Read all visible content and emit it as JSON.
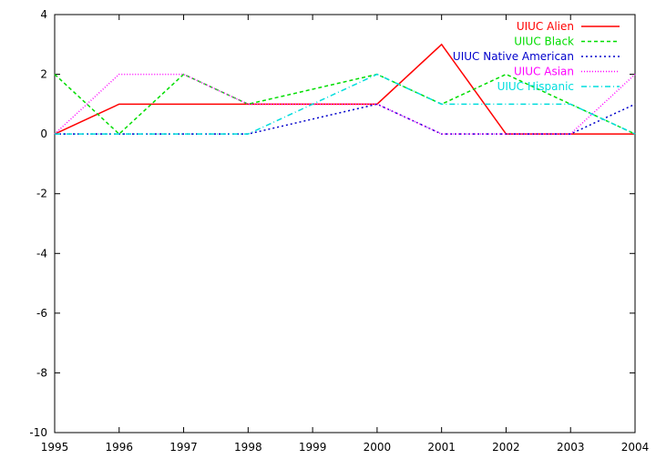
{
  "chart_data": {
    "type": "line",
    "x": [
      1995,
      1996,
      1997,
      1998,
      1999,
      2000,
      2001,
      2002,
      2003,
      2004
    ],
    "xlim": [
      1995,
      2004
    ],
    "ylim": [
      -10,
      4
    ],
    "xticks": [
      "1995",
      "1996",
      "1997",
      "1998",
      "1999",
      "2000",
      "2001",
      "2002",
      "2003",
      "2004"
    ],
    "yticks": [
      "-10",
      "-8",
      "-6",
      "-4",
      "-2",
      "0",
      "2",
      "4"
    ],
    "grid": false,
    "legend_position": "top-right",
    "series": [
      {
        "name": "UIUC Alien",
        "color": "#ff0000",
        "dash": "solid",
        "values": [
          0,
          1,
          1,
          1,
          1,
          1,
          3,
          0,
          0,
          0
        ]
      },
      {
        "name": "UIUC Black",
        "color": "#00dd00",
        "dash": "dashed",
        "values": [
          2,
          0,
          2,
          1,
          1.5,
          2,
          1,
          2,
          1,
          0
        ]
      },
      {
        "name": "UIUC Native American",
        "color": "#0000cc",
        "dash": "dotted",
        "values": [
          0,
          0,
          0,
          0,
          0.5,
          1,
          0,
          0,
          0,
          1
        ]
      },
      {
        "name": "UIUC Asian",
        "color": "#ff00ff",
        "dash": "fine-dotted",
        "values": [
          0,
          2,
          2,
          1,
          1,
          1,
          0,
          0,
          0,
          2
        ]
      },
      {
        "name": "UIUC Hispanic",
        "color": "#00dddd",
        "dash": "dash-dot",
        "values": [
          0,
          0,
          0,
          0,
          1,
          2,
          1,
          1,
          1,
          0
        ]
      }
    ]
  }
}
